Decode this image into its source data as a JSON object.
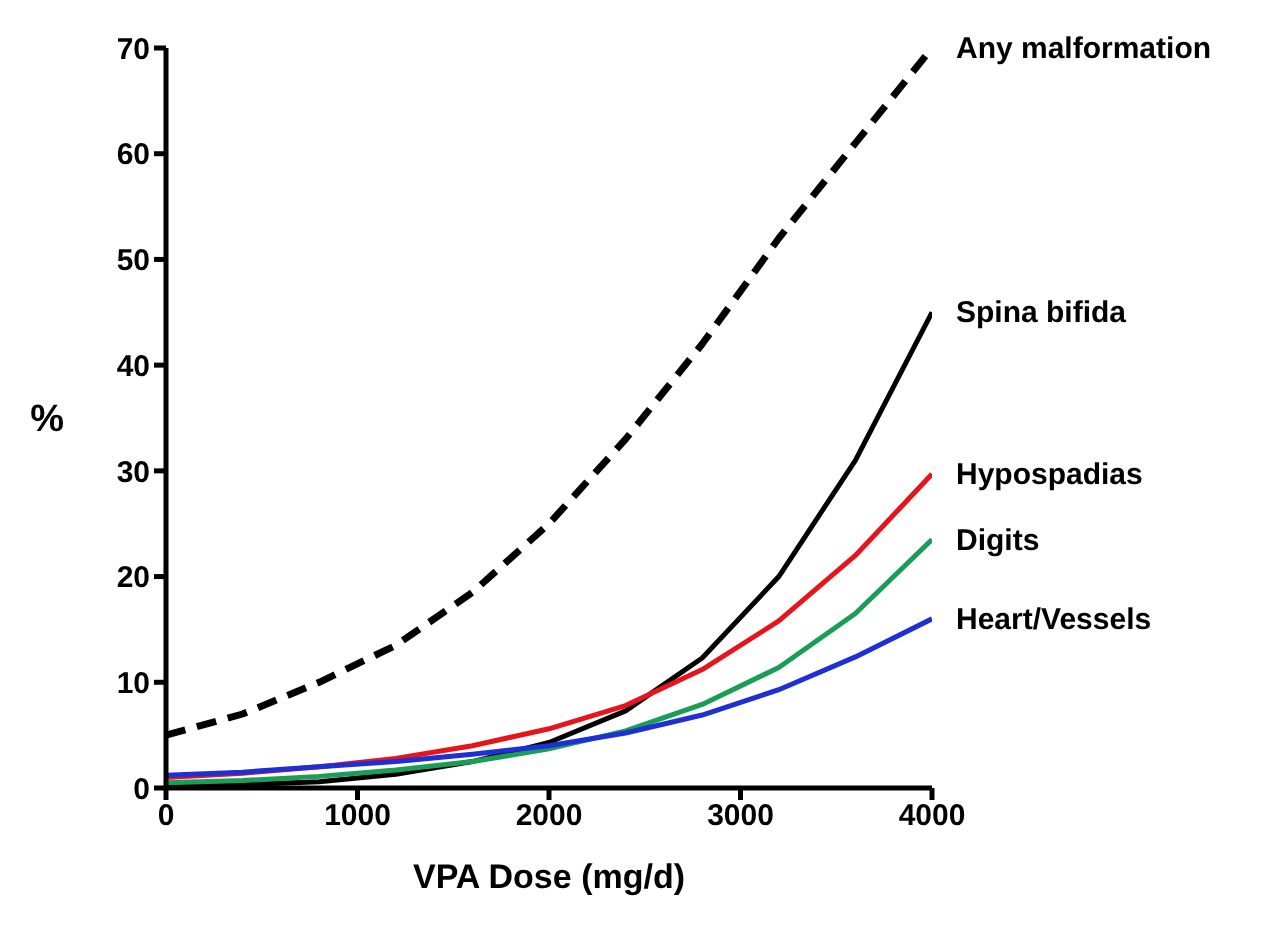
{
  "chart_data": {
    "type": "line",
    "xlabel": "VPA Dose (mg/d)",
    "ylabel": "%",
    "x": [
      0,
      400,
      800,
      1200,
      1600,
      2000,
      2400,
      2800,
      3200,
      3600,
      4000
    ],
    "xlim": [
      0,
      4000
    ],
    "xticks": [
      0,
      1000,
      2000,
      3000,
      4000
    ],
    "ylim": [
      0,
      70
    ],
    "yticks": [
      0,
      10,
      20,
      30,
      40,
      50,
      60,
      70
    ],
    "grid": false,
    "legend": false,
    "marker": "none",
    "series": [
      {
        "name": "Any malformation",
        "color": "#000000",
        "line_style": "dashed",
        "values": [
          5,
          7,
          10,
          13.5,
          18.5,
          25,
          33,
          42,
          52,
          61,
          70
        ]
      },
      {
        "name": "Spina bifida",
        "color": "#000000",
        "line_style": "solid",
        "values": [
          0.2,
          0.3,
          0.6,
          1.3,
          2.5,
          4.3,
          7.3,
          12.3,
          20,
          31,
          45
        ]
      },
      {
        "name": "Hypospadias",
        "color": "#e8141b",
        "line_style": "solid",
        "values": [
          1,
          1.4,
          2,
          2.8,
          4,
          5.6,
          7.8,
          11.2,
          15.8,
          22,
          29.7
        ]
      },
      {
        "name": "Digits",
        "color": "#1a9e57",
        "line_style": "solid",
        "values": [
          0.5,
          0.7,
          1.1,
          1.7,
          2.5,
          3.7,
          5.4,
          7.9,
          11.4,
          16.5,
          23.5
        ]
      },
      {
        "name": "Heart/Vessels",
        "color": "#1f2fd6",
        "line_style": "solid",
        "values": [
          1.2,
          1.5,
          2,
          2.5,
          3.2,
          4,
          5.2,
          6.9,
          9.3,
          12.4,
          16
        ]
      }
    ]
  }
}
